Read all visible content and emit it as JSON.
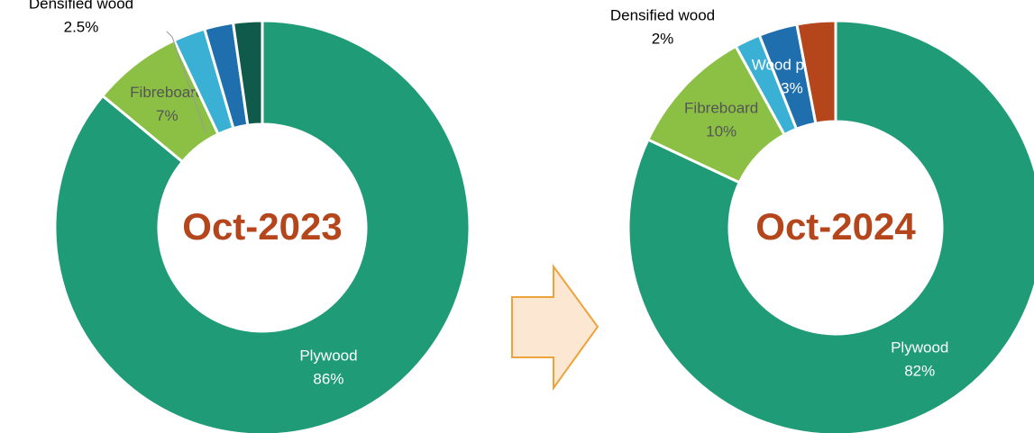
{
  "chart_data": [
    {
      "type": "donut",
      "title": "Oct-2023",
      "categories": [
        "Plywood",
        "Fibreboard",
        "Densified wood",
        null,
        null
      ],
      "values": [
        86,
        7,
        2.5,
        2.25,
        2.25
      ],
      "value_labels": [
        "86%",
        "7%",
        "2.5%",
        null,
        null
      ],
      "colors": [
        "#1f9b77",
        "#8bc045",
        "#3ab0d4",
        "#1f6fae",
        "#0f5a4a"
      ]
    },
    {
      "type": "donut",
      "title": "Oct-2024",
      "categories": [
        "Plywood",
        "Fibreboard",
        "Densified wood",
        "Wood plank",
        null
      ],
      "values": [
        82,
        10,
        2,
        3,
        3
      ],
      "value_labels": [
        "82%",
        "10%",
        "2%",
        "3%",
        null
      ],
      "colors": [
        "#1f9b77",
        "#8bc045",
        "#3ab0d4",
        "#1f6fae",
        "#b5451b"
      ]
    }
  ]
}
